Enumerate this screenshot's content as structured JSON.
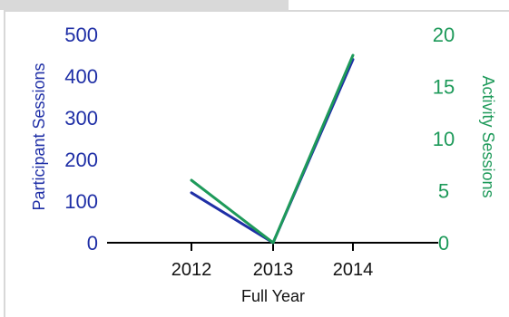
{
  "chart_data": {
    "type": "line",
    "title": "",
    "xlabel": "Full Year",
    "categories": [
      "2012",
      "2013",
      "2014"
    ],
    "y_left": {
      "label": "Participant Sessions",
      "ylim": [
        0,
        500
      ],
      "ticks": [
        "0",
        "100",
        "200",
        "300",
        "400",
        "500"
      ],
      "color": "#1f2fa6"
    },
    "y_right": {
      "label": "Activity Sessions",
      "ylim": [
        0,
        20
      ],
      "ticks": [
        "0",
        "5",
        "10",
        "15",
        "20"
      ],
      "color": "#1e9a5a"
    },
    "series": [
      {
        "name": "Participant Sessions",
        "axis": "left",
        "color": "#1f2fa6",
        "values": [
          120,
          0,
          440
        ]
      },
      {
        "name": "Activity Sessions",
        "axis": "right",
        "color": "#1e9a5a",
        "values": [
          6,
          0,
          18
        ]
      }
    ],
    "grid": false,
    "legend": "none"
  }
}
